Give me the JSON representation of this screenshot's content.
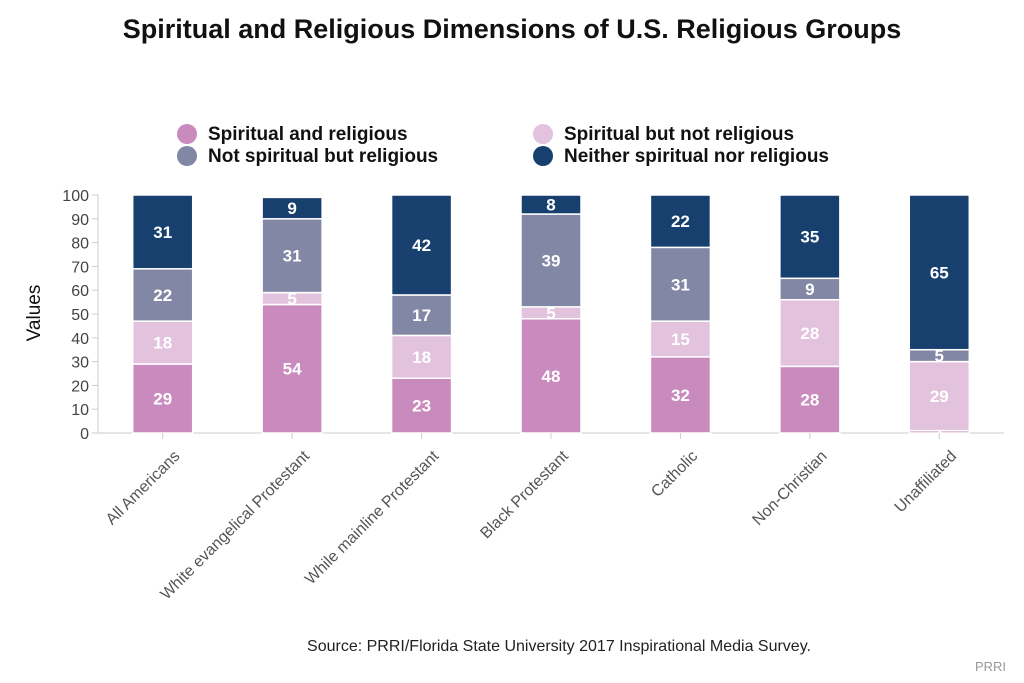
{
  "chart_data": {
    "type": "bar",
    "stacked": true,
    "title": "Spiritual and Religious Dimensions of U.S. Religious Groups",
    "ylabel": "Values",
    "xlabel": "",
    "ylim": [
      0,
      100
    ],
    "yticks": [
      0,
      10,
      20,
      30,
      40,
      50,
      60,
      70,
      80,
      90,
      100
    ],
    "grid": false,
    "legend_position": "top",
    "categories": [
      "All Americans",
      "White evangelical Protestant",
      "While mainline Protestant",
      "Black Protestant",
      "Catholic",
      "Non-Christian",
      "Unaffiliated"
    ],
    "series": [
      {
        "name": "Spiritual and religious",
        "color": "#c98bbd",
        "values": [
          29,
          54,
          23,
          48,
          32,
          28,
          1
        ]
      },
      {
        "name": "Spiritual but not religious",
        "color": "#e2c2dc",
        "values": [
          18,
          5,
          18,
          5,
          15,
          28,
          29
        ]
      },
      {
        "name": "Not spiritual but religious",
        "color": "#8287a6",
        "values": [
          22,
          31,
          17,
          39,
          31,
          9,
          5
        ]
      },
      {
        "name": "Neither spiritual nor religious",
        "color": "#17406e",
        "values": [
          31,
          9,
          42,
          8,
          22,
          35,
          65
        ]
      }
    ],
    "source": "Source: PRRI/Florida State University 2017 Inspirational Media Survey.",
    "brand": "PRRI"
  }
}
